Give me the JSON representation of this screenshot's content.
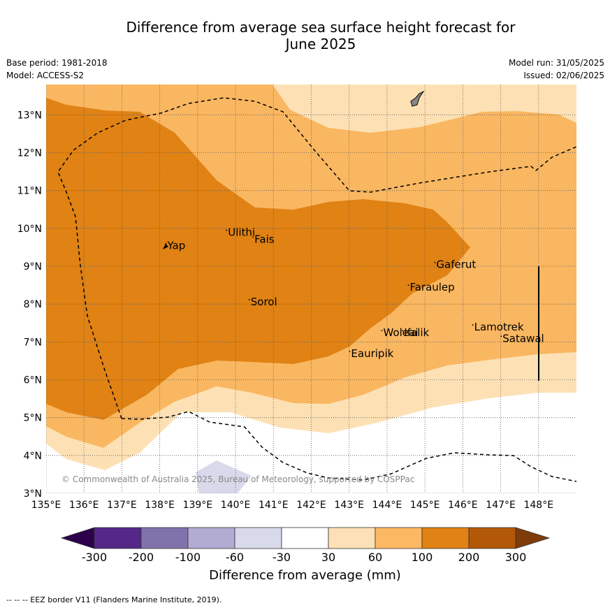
{
  "title_line1": "Difference from average sea surface height forecast for",
  "title_line2": "June 2025",
  "meta_left": {
    "base_period": "Base period: 1981-2018",
    "model": "Model: ACCESS-S2"
  },
  "meta_right": {
    "model_run": "Model run: 31/05/2025",
    "issued": "Issued: 02/06/2025"
  },
  "map": {
    "lon_range": [
      135,
      149
    ],
    "lat_range": [
      3,
      13.8
    ],
    "lon_ticks": [
      "135°E",
      "136°E",
      "137°E",
      "138°E",
      "139°E",
      "140°E",
      "141°E",
      "142°E",
      "143°E",
      "144°E",
      "145°E",
      "146°E",
      "147°E",
      "148°E"
    ],
    "lat_ticks": [
      "3°N",
      "4°N",
      "5°N",
      "6°N",
      "7°N",
      "8°N",
      "9°N",
      "10°N",
      "11°N",
      "12°N",
      "13°N"
    ],
    "grid": true,
    "band_colors": {
      "30_60": "#fde1b5",
      "60_100": "#fab761",
      "100_200": "#e08214",
      "neg30_neg60": "#d8daeb"
    },
    "places": [
      {
        "name": "Yap",
        "lon": 138.2,
        "lat": 9.45
      },
      {
        "name": "Ulithi",
        "lon": 139.8,
        "lat": 9.8
      },
      {
        "name": "Fais",
        "lon": 140.5,
        "lat": 9.62
      },
      {
        "name": "Sorol",
        "lon": 140.4,
        "lat": 7.97
      },
      {
        "name": "Gaferut",
        "lon": 145.3,
        "lat": 8.95
      },
      {
        "name": "Faraulep",
        "lon": 144.6,
        "lat": 8.35
      },
      {
        "name": "Woleai",
        "lon": 143.9,
        "lat": 7.15
      },
      {
        "name": "Ifalik",
        "lon": 144.45,
        "lat": 7.15
      },
      {
        "name": "Lamotrek",
        "lon": 146.3,
        "lat": 7.3
      },
      {
        "name": "Satawal",
        "lon": 147.05,
        "lat": 7.0
      },
      {
        "name": "Eauripik",
        "lon": 143.05,
        "lat": 6.6
      }
    ],
    "copyright": "© Commonwealth of Australia 2025, Bureau of Meteorology, supported by COSPPac"
  },
  "colorbar": {
    "labels": [
      "-300",
      "-200",
      "-100",
      "-60",
      "-30",
      "30",
      "60",
      "100",
      "200",
      "300"
    ],
    "colors": [
      "#2d004b",
      "#542788",
      "#8073ac",
      "#b2abd2",
      "#d8daeb",
      "#ffffff",
      "#fee0b6",
      "#fdb863",
      "#e08214",
      "#b35806",
      "#7f3b08"
    ],
    "title": "Difference from average (mm)"
  },
  "footnote": "--  --  -- EEZ border V11 (Flanders Marine Institute, 2019)."
}
